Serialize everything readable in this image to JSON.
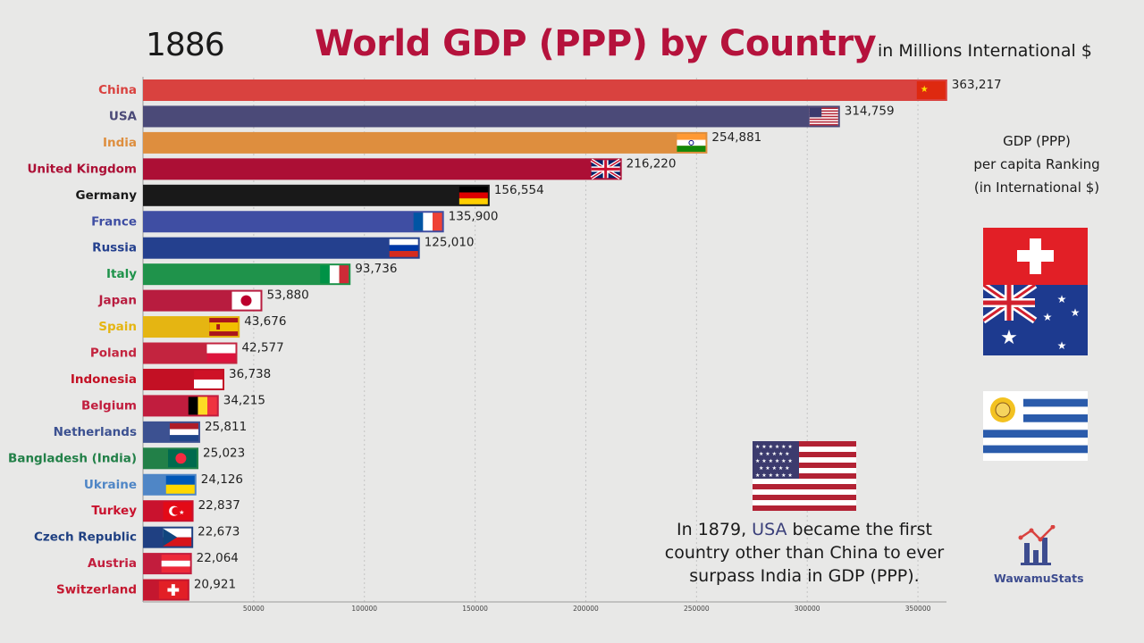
{
  "header": {
    "year": "1886",
    "title": "World GDP (PPP) by Country",
    "units": "in Millions International $"
  },
  "colors": {
    "title": "#b5123c"
  },
  "chart_data": {
    "type": "bar",
    "orientation": "horizontal",
    "title": "World GDP (PPP) by Country",
    "xlim": [
      0,
      375000
    ],
    "xticks": [
      50000,
      100000,
      150000,
      200000,
      250000,
      300000,
      350000
    ],
    "xtick_labels": [
      "50000",
      "100000",
      "150000",
      "200000",
      "250000",
      "300000",
      "350000"
    ],
    "categories": [
      "China",
      "USA",
      "India",
      "United Kingdom",
      "Germany",
      "France",
      "Russia",
      "Italy",
      "Japan",
      "Spain",
      "Poland",
      "Indonesia",
      "Belgium",
      "Netherlands",
      "Bangladesh (India)",
      "Ukraine",
      "Turkey",
      "Czech Republic",
      "Austria",
      "Switzerland"
    ],
    "values": [
      363217,
      314759,
      254881,
      216220,
      156554,
      135900,
      125010,
      93736,
      53880,
      43676,
      42577,
      36738,
      34215,
      25811,
      25023,
      24126,
      22837,
      22673,
      22064,
      20921
    ],
    "value_labels": [
      "363,217",
      "314,759",
      "254,881",
      "216,220",
      "156,554",
      "135,900",
      "125,010",
      "93,736",
      "53,880",
      "43,676",
      "42,577",
      "36,738",
      "34,215",
      "25,811",
      "25,023",
      "24,126",
      "22,837",
      "22,673",
      "22,064",
      "20,921"
    ],
    "bar_colors": [
      "#d9423f",
      "#4b4a78",
      "#de8e3e",
      "#ac0f35",
      "#191919",
      "#3f4ea3",
      "#24408e",
      "#1f934b",
      "#b81c3f",
      "#e5b512",
      "#c3243f",
      "#c31024",
      "#c11d3e",
      "#3c5191",
      "#228048",
      "#4f86c6",
      "#c9122e",
      "#1f4082",
      "#c21d3d",
      "#c4172f"
    ],
    "label_colors": [
      "#d9423f",
      "#4b4a78",
      "#de8e3e",
      "#ac0f35",
      "#191919",
      "#3f4ea3",
      "#24408e",
      "#1f934b",
      "#b81c3f",
      "#e5b512",
      "#c3243f",
      "#c31024",
      "#c11d3e",
      "#3c5191",
      "#228048",
      "#4f86c6",
      "#c9122e",
      "#1f4082",
      "#c21d3d",
      "#c4172f"
    ],
    "flag_icons": [
      "china-flag-icon",
      "usa-flag-icon",
      "india-flag-icon",
      "uk-flag-icon",
      "germany-flag-icon",
      "france-flag-icon",
      "russia-flag-icon",
      "italy-flag-icon",
      "japan-flag-icon",
      "spain-flag-icon",
      "poland-flag-icon",
      "indonesia-flag-icon",
      "belgium-flag-icon",
      "netherlands-flag-icon",
      "bangladesh-flag-icon",
      "ukraine-flag-icon",
      "turkey-flag-icon",
      "czech-flag-icon",
      "austria-flag-icon",
      "switzerland-flag-icon"
    ]
  },
  "sidebar": {
    "title_line1": "GDP (PPP)",
    "title_line2": "per capita Ranking",
    "title_line3": "(in International $)",
    "flags": [
      "switzerland-flag-icon",
      "australia-flag-icon",
      "uruguay-flag-icon"
    ]
  },
  "note": {
    "text_before": "In 1879, ",
    "highlight": "USA",
    "text_after": " became the first country other than China to ever surpass India in GDP (PPP).",
    "flag": "usa-flag-icon"
  },
  "logo": {
    "text": "WawamuStats",
    "icon": "bar-chart-logo-icon"
  }
}
